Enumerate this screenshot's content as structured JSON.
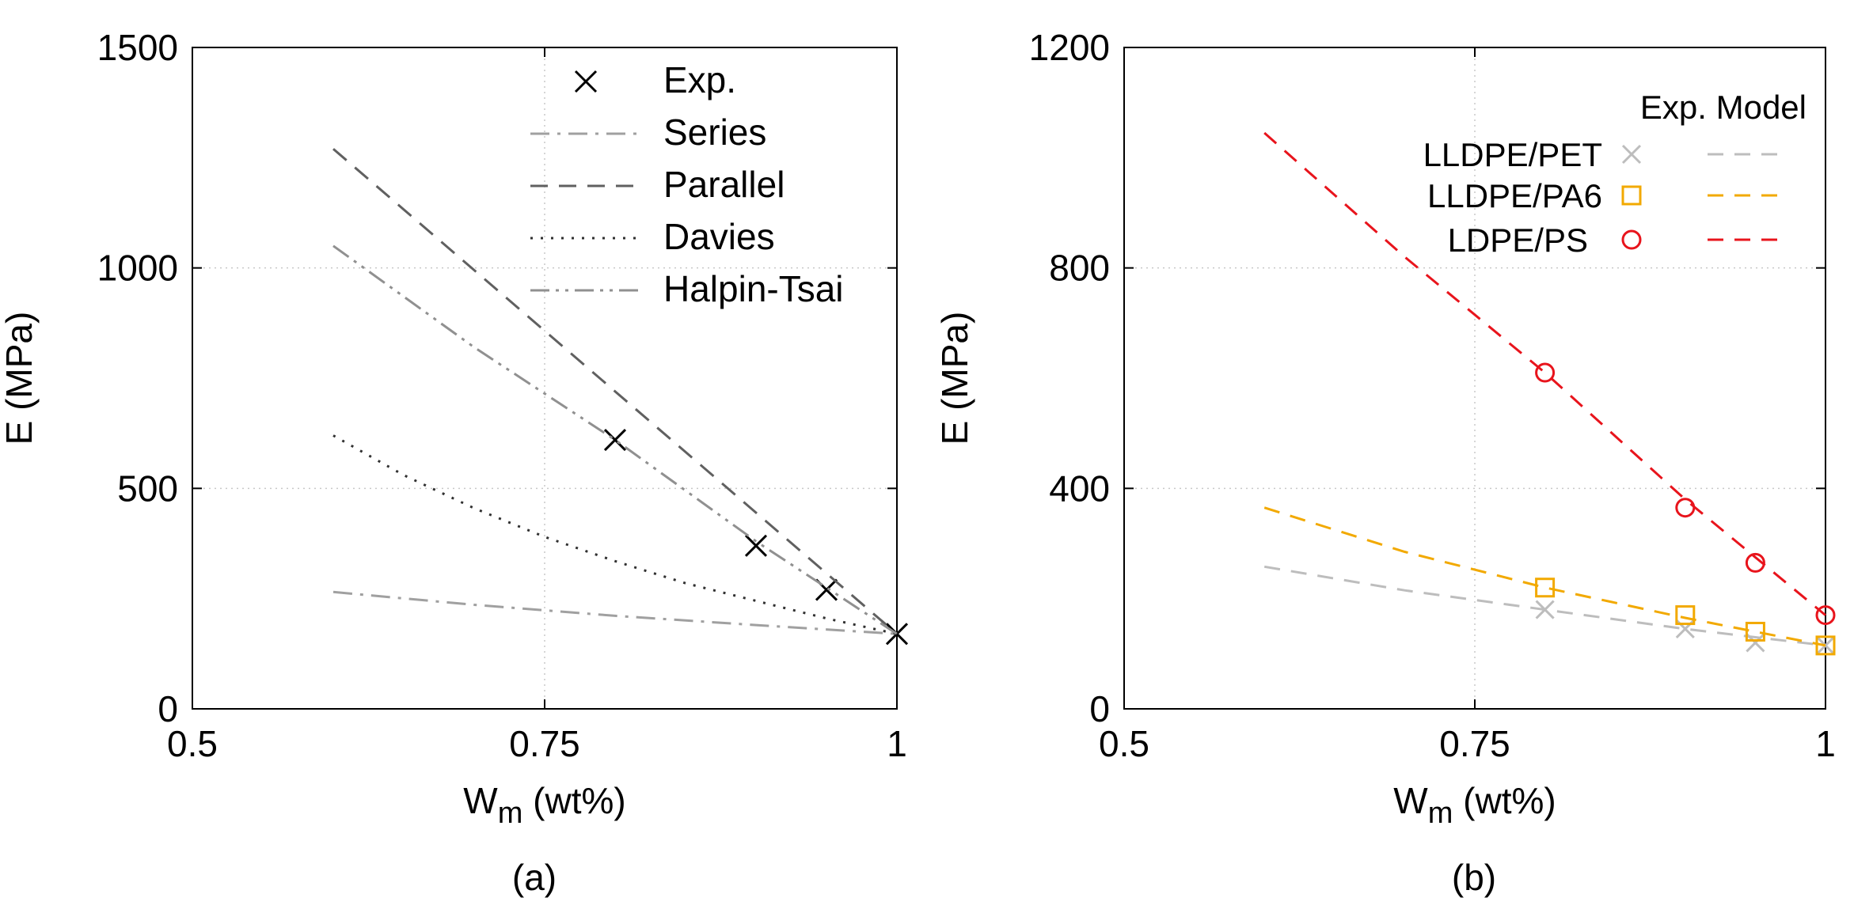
{
  "chart_data": [
    {
      "type": "line",
      "caption": "(a)",
      "xlabel_main": "W",
      "xlabel_sub": "m",
      "xlabel_unit": " (wt%)",
      "ylabel": "E (MPa)",
      "xlim": [
        0.5,
        1
      ],
      "ylim": [
        0,
        1500
      ],
      "xticks": [
        0.5,
        0.75,
        1
      ],
      "xtick_labels": [
        "0.5",
        "0.75",
        "1"
      ],
      "yticks": [
        0,
        500,
        1000,
        1500
      ],
      "ytick_labels": [
        "0",
        "500",
        "1000",
        "1500"
      ],
      "legend_position": "top-right",
      "series": [
        {
          "name": "Exp.",
          "kind": "points",
          "marker": "x",
          "color": "#000000",
          "x": [
            0.8,
            0.9,
            0.95,
            1.0
          ],
          "y": [
            610,
            370,
            270,
            170
          ]
        },
        {
          "name": "Series",
          "kind": "line",
          "dash": "dashdot",
          "color": "#a0a0a0",
          "x": [
            0.6,
            0.7,
            0.8,
            0.9,
            1.0
          ],
          "y": [
            265,
            236,
            211,
            190,
            170
          ]
        },
        {
          "name": "Parallel",
          "kind": "line",
          "dash": "dash",
          "color": "#606060",
          "x": [
            0.6,
            1.0
          ],
          "y": [
            1270,
            170
          ]
        },
        {
          "name": "Davies",
          "kind": "line",
          "dash": "dot",
          "color": "#303030",
          "x": [
            0.6,
            0.65,
            0.7,
            0.75,
            0.8,
            0.85,
            0.9,
            0.95,
            1.0
          ],
          "y": [
            620,
            530,
            455,
            390,
            335,
            285,
            245,
            205,
            170
          ]
        },
        {
          "name": "Halpin-Tsai",
          "kind": "line",
          "dash": "dashdotdot",
          "color": "#909090",
          "x": [
            0.6,
            0.7,
            0.8,
            0.9,
            1.0
          ],
          "y": [
            1050,
            820,
            610,
            380,
            170
          ]
        }
      ]
    },
    {
      "type": "line",
      "caption": "(b)",
      "xlabel_main": "W",
      "xlabel_sub": "m",
      "xlabel_unit": " (wt%)",
      "ylabel": "E (MPa)",
      "xlim": [
        0.5,
        1
      ],
      "ylim": [
        0,
        1200
      ],
      "xticks": [
        0.5,
        0.75,
        1
      ],
      "xtick_labels": [
        "0.5",
        "0.75",
        "1"
      ],
      "yticks": [
        0,
        400,
        800,
        1200
      ],
      "ytick_labels": [
        "0",
        "400",
        "800",
        "1200"
      ],
      "legend_position": "top-right",
      "legend_header": "Exp. Model",
      "series": [
        {
          "name": "LLDPE/PET",
          "marker": "x",
          "color": "#bdbdbd",
          "exp_x": [
            0.8,
            0.9,
            0.95,
            1.0
          ],
          "exp_y": [
            180,
            145,
            120,
            115
          ],
          "model_x": [
            0.6,
            0.7,
            0.8,
            0.9,
            1.0
          ],
          "model_y": [
            258,
            215,
            180,
            145,
            115
          ]
        },
        {
          "name": "LLDPE/PA6",
          "marker": "square",
          "color": "#f2a900",
          "exp_x": [
            0.8,
            0.9,
            0.95,
            1.0
          ],
          "exp_y": [
            220,
            170,
            140,
            115
          ],
          "model_x": [
            0.6,
            0.7,
            0.8,
            0.9,
            1.0
          ],
          "model_y": [
            365,
            285,
            220,
            165,
            115
          ]
        },
        {
          "name": "LDPE/PS",
          "marker": "circle",
          "color": "#e8141c",
          "exp_x": [
            0.8,
            0.9,
            0.95,
            1.0
          ],
          "exp_y": [
            610,
            365,
            265,
            170
          ],
          "model_x": [
            0.6,
            0.7,
            0.8,
            0.9,
            1.0
          ],
          "model_y": [
            1045,
            820,
            610,
            380,
            170
          ]
        }
      ]
    }
  ]
}
